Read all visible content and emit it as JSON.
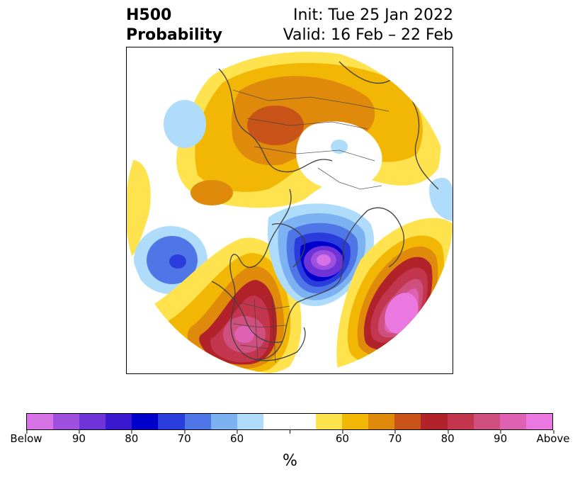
{
  "title": {
    "left_line1": "H500",
    "left_line2": "Probability",
    "right_line1": "Init: Tue 25 Jan 2022",
    "right_line2": "Valid: 16 Feb – 22 Feb"
  },
  "colorbar": {
    "colors": [
      "#d772e6",
      "#a050de",
      "#6e34d8",
      "#3a18d0",
      "#0000cc",
      "#2a3cdc",
      "#4f76e6",
      "#7cb2f2",
      "#aedcfa",
      "#ffffff",
      "#ffffff",
      "#ffe34e",
      "#f2b705",
      "#e08a0c",
      "#c8541a",
      "#b2222a",
      "#c4364e",
      "#cf4f7e",
      "#df62b2",
      "#ea78e0"
    ],
    "tick_labels": [
      "Below",
      "90",
      "80",
      "70",
      "60",
      "",
      "60",
      "70",
      "80",
      "90",
      "Above"
    ],
    "unit": "%"
  },
  "map": {
    "projection": "north-polar stereographic",
    "palette": {
      "below_strong": "#d772e6",
      "below_mid": "#0000cc",
      "below_weak": "#aedcfa",
      "above_weak": "#ffe34e",
      "above_mid": "#e08a0c",
      "above_strong": "#ea78e0",
      "coastline": "#404040"
    }
  }
}
